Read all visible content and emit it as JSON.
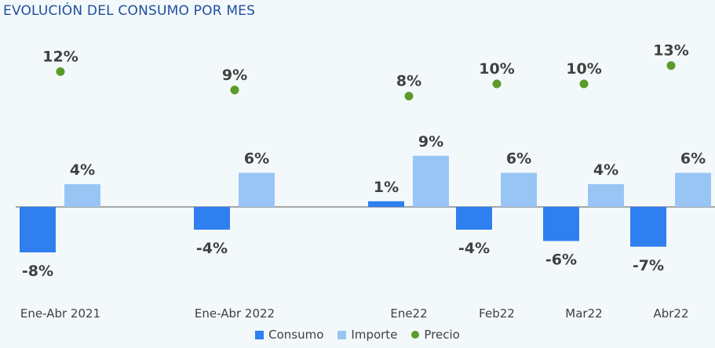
{
  "chart_data": {
    "type": "bar",
    "title": "EVOLUCIÓN DEL CONSUMO POR MES",
    "categories": [
      "Ene-Abr 2021",
      "Ene-Abr 2022",
      "Ene22",
      "Feb22",
      "Mar22",
      "Abr22"
    ],
    "series": [
      {
        "name": "Consumo",
        "type": "bar",
        "color": "#2f7ff0",
        "values": [
          -8,
          -4,
          1,
          -4,
          -6,
          -7
        ],
        "labels": [
          "-8%",
          "-4%",
          "1%",
          "-4%",
          "-6%",
          "-7%"
        ]
      },
      {
        "name": "Importe",
        "type": "bar",
        "color": "#99c5f5",
        "values": [
          4,
          6,
          9,
          6,
          4,
          6
        ],
        "labels": [
          "4%",
          "6%",
          "9%",
          "6%",
          "4%",
          "6%"
        ]
      },
      {
        "name": "Precio",
        "type": "scatter",
        "color": "#5b9b2a",
        "values": [
          12,
          9,
          8,
          10,
          10,
          13
        ],
        "labels": [
          "12%",
          "9%",
          "8%",
          "10%",
          "10%",
          "13%"
        ]
      }
    ],
    "ylim": [
      -10,
      15
    ],
    "grid": false,
    "legend": "bottom-center"
  }
}
